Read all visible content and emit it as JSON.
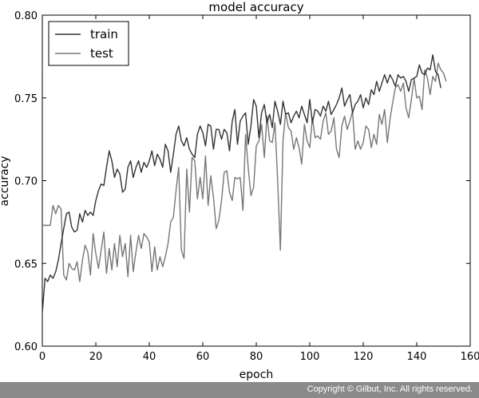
{
  "chart_data": {
    "type": "line",
    "title": "model accuracy",
    "xlabel": "epoch",
    "ylabel": "accuracy",
    "xlim": [
      0,
      160
    ],
    "ylim": [
      0.6,
      0.8
    ],
    "xticks": [
      "0",
      "20",
      "40",
      "60",
      "80",
      "100",
      "120",
      "140",
      "160"
    ],
    "yticks": [
      "0.60",
      "0.65",
      "0.70",
      "0.75",
      "0.80"
    ],
    "legend_position": "top-left",
    "grid": false,
    "series": [
      {
        "name": "train",
        "color": "#333333",
        "values": [
          0.62,
          0.641,
          0.639,
          0.643,
          0.641,
          0.645,
          0.652,
          0.662,
          0.671,
          0.68,
          0.681,
          0.672,
          0.669,
          0.67,
          0.68,
          0.675,
          0.682,
          0.679,
          0.681,
          0.679,
          0.688,
          0.694,
          0.698,
          0.697,
          0.708,
          0.718,
          0.712,
          0.702,
          0.707,
          0.704,
          0.693,
          0.695,
          0.708,
          0.712,
          0.702,
          0.708,
          0.712,
          0.705,
          0.711,
          0.708,
          0.712,
          0.718,
          0.709,
          0.716,
          0.713,
          0.708,
          0.722,
          0.718,
          0.705,
          0.716,
          0.728,
          0.733,
          0.724,
          0.721,
          0.726,
          0.719,
          0.716,
          0.714,
          0.728,
          0.733,
          0.729,
          0.721,
          0.734,
          0.733,
          0.719,
          0.731,
          0.731,
          0.725,
          0.731,
          0.729,
          0.718,
          0.736,
          0.743,
          0.722,
          0.736,
          0.739,
          0.741,
          0.722,
          0.733,
          0.749,
          0.745,
          0.726,
          0.741,
          0.746,
          0.735,
          0.74,
          0.732,
          0.748,
          0.742,
          0.734,
          0.748,
          0.74,
          0.741,
          0.735,
          0.739,
          0.742,
          0.738,
          0.745,
          0.74,
          0.735,
          0.749,
          0.735,
          0.743,
          0.742,
          0.739,
          0.745,
          0.742,
          0.748,
          0.74,
          0.743,
          0.746,
          0.75,
          0.756,
          0.745,
          0.749,
          0.752,
          0.741,
          0.746,
          0.748,
          0.752,
          0.744,
          0.75,
          0.746,
          0.755,
          0.752,
          0.76,
          0.754,
          0.759,
          0.764,
          0.759,
          0.764,
          0.761,
          0.757,
          0.764,
          0.762,
          0.763,
          0.76,
          0.754,
          0.761,
          0.762,
          0.763,
          0.77,
          0.765,
          0.764,
          0.768,
          0.767,
          0.776,
          0.766,
          0.764,
          0.756
        ]
      },
      {
        "name": "test",
        "color": "#777777",
        "values": [
          0.673,
          0.673,
          0.673,
          0.673,
          0.685,
          0.68,
          0.685,
          0.683,
          0.643,
          0.64,
          0.65,
          0.647,
          0.646,
          0.651,
          0.639,
          0.652,
          0.661,
          0.657,
          0.643,
          0.668,
          0.656,
          0.647,
          0.658,
          0.669,
          0.644,
          0.659,
          0.646,
          0.662,
          0.648,
          0.667,
          0.654,
          0.662,
          0.642,
          0.667,
          0.645,
          0.657,
          0.667,
          0.659,
          0.668,
          0.666,
          0.663,
          0.645,
          0.66,
          0.646,
          0.654,
          0.648,
          0.654,
          0.662,
          0.675,
          0.678,
          0.694,
          0.708,
          0.658,
          0.653,
          0.707,
          0.681,
          0.714,
          0.712,
          0.689,
          0.702,
          0.689,
          0.715,
          0.685,
          0.703,
          0.69,
          0.671,
          0.676,
          0.688,
          0.705,
          0.706,
          0.693,
          0.688,
          0.702,
          0.701,
          0.702,
          0.682,
          0.728,
          0.708,
          0.691,
          0.696,
          0.721,
          0.724,
          0.734,
          0.714,
          0.739,
          0.724,
          0.723,
          0.735,
          0.7,
          0.658,
          0.724,
          0.741,
          0.732,
          0.73,
          0.719,
          0.726,
          0.72,
          0.71,
          0.734,
          0.724,
          0.72,
          0.738,
          0.726,
          0.727,
          0.725,
          0.736,
          0.741,
          0.728,
          0.73,
          0.738,
          0.719,
          0.714,
          0.733,
          0.739,
          0.731,
          0.736,
          0.742,
          0.719,
          0.724,
          0.719,
          0.723,
          0.733,
          0.731,
          0.72,
          0.728,
          0.722,
          0.74,
          0.734,
          0.743,
          0.723,
          0.737,
          0.747,
          0.756,
          0.758,
          0.754,
          0.759,
          0.744,
          0.738,
          0.749,
          0.762,
          0.75,
          0.751,
          0.743,
          0.767,
          0.762,
          0.752,
          0.763,
          0.76,
          0.771,
          0.767,
          0.765,
          0.76
        ]
      }
    ]
  },
  "footer": {
    "copyright": "Copyright © Gilbut, Inc. All rights reserved."
  }
}
